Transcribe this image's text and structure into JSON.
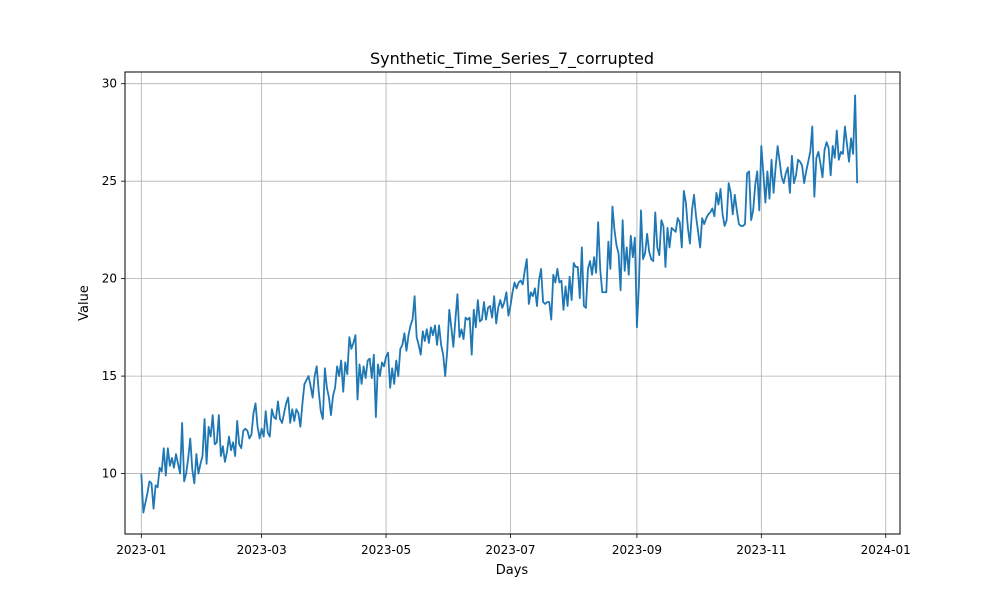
{
  "chart_data": {
    "type": "line",
    "title": "Synthetic_Time_Series_7_corrupted",
    "xlabel": "Days",
    "ylabel": "Value",
    "xlim": [
      "2022-12-24",
      "2024-01-08"
    ],
    "ylim": [
      6.9,
      30.6
    ],
    "grid": true,
    "x_ticks": [
      "2023-01",
      "2023-03",
      "2023-05",
      "2023-07",
      "2023-09",
      "2023-11",
      "2024-01"
    ],
    "y_ticks": [
      10,
      15,
      20,
      25,
      30
    ],
    "series": [
      {
        "color": "#1f77b4",
        "x_start": "2023-01-01",
        "x_step_days": 1,
        "values": [
          10.0,
          8.0,
          8.5,
          9.0,
          9.6,
          9.5,
          8.2,
          9.4,
          9.3,
          10.3,
          10.1,
          11.3,
          9.9,
          11.3,
          10.4,
          10.8,
          10.3,
          11.0,
          10.5,
          10.0,
          12.6,
          9.6,
          10.0,
          10.8,
          11.8,
          10.2,
          9.5,
          11.0,
          10.0,
          10.5,
          10.9,
          12.8,
          10.5,
          12.4,
          11.9,
          13.0,
          11.5,
          11.6,
          13.0,
          10.9,
          11.4,
          10.6,
          11.1,
          11.9,
          11.2,
          11.6,
          10.9,
          12.7,
          11.5,
          11.3,
          12.2,
          12.3,
          12.2,
          11.8,
          12.0,
          13.1,
          13.6,
          12.4,
          11.8,
          12.3,
          11.9,
          13.2,
          12.1,
          11.9,
          13.3,
          12.9,
          12.8,
          13.7,
          12.8,
          12.6,
          13.1,
          13.6,
          13.9,
          12.6,
          13.3,
          12.7,
          13.3,
          13.1,
          12.4,
          13.6,
          14.6,
          14.8,
          15.0,
          14.5,
          13.9,
          15.0,
          15.5,
          14.2,
          13.2,
          12.8,
          15.4,
          14.4,
          13.9,
          13.0,
          14.0,
          14.4,
          15.5,
          15.0,
          15.8,
          14.2,
          15.7,
          15.1,
          17.0,
          16.4,
          16.7,
          17.1,
          13.8,
          15.6,
          14.6,
          15.5,
          14.9,
          15.8,
          15.9,
          14.9,
          16.1,
          12.9,
          15.6,
          15.0,
          15.7,
          15.5,
          16.0,
          16.2,
          14.4,
          15.4,
          14.6,
          15.8,
          15.0,
          16.4,
          16.6,
          17.2,
          16.3,
          17.1,
          17.6,
          17.9,
          19.1,
          17.0,
          16.6,
          16.1,
          17.3,
          16.8,
          17.4,
          16.7,
          17.5,
          17.1,
          17.6,
          16.6,
          17.6,
          16.6,
          16.1,
          15.0,
          16.3,
          18.4,
          17.5,
          16.5,
          17.9,
          19.2,
          17.0,
          17.4,
          16.9,
          18.0,
          17.9,
          18.0,
          16.1,
          18.4,
          17.5,
          18.9,
          17.8,
          17.9,
          18.8,
          17.9,
          18.5,
          18.6,
          18.0,
          19.1,
          17.7,
          18.5,
          18.9,
          18.5,
          18.8,
          19.3,
          18.1,
          18.6,
          19.3,
          19.8,
          19.5,
          19.8,
          19.9,
          19.7,
          20.4,
          21.0,
          18.7,
          19.3,
          19.1,
          19.5,
          18.6,
          19.9,
          20.5,
          18.8,
          18.7,
          18.8,
          18.8,
          17.9,
          20.2,
          19.8,
          20.5,
          19.8,
          19.9,
          18.4,
          19.6,
          18.6,
          20.1,
          18.9,
          20.8,
          20.6,
          20.6,
          19.0,
          21.6,
          18.6,
          18.5,
          20.5,
          20.9,
          20.2,
          21.1,
          20.3,
          22.9,
          20.5,
          19.3,
          19.3,
          19.3,
          21.9,
          20.5,
          23.7,
          22.5,
          21.7,
          21.3,
          19.4,
          23.0,
          20.4,
          21.6,
          20.2,
          22.2,
          21.1,
          22.1,
          17.5,
          19.7,
          23.5,
          21.0,
          21.3,
          22.3,
          21.4,
          21.0,
          20.9,
          23.4,
          21.6,
          21.2,
          23.0,
          22.7,
          20.6,
          22.6,
          21.6,
          22.6,
          22.5,
          22.4,
          23.1,
          22.9,
          21.6,
          24.5,
          23.9,
          22.6,
          21.8,
          23.5,
          24.3,
          23.2,
          22.4,
          21.6,
          23.1,
          22.8,
          23.1,
          23.3,
          23.4,
          23.6,
          23.2,
          24.4,
          23.8,
          24.6,
          23.3,
          22.7,
          23.0,
          24.9,
          24.4,
          23.3,
          24.3,
          23.5,
          22.8,
          22.7,
          22.7,
          22.8,
          25.4,
          25.5,
          23.0,
          23.5,
          24.8,
          25.5,
          23.5,
          26.8,
          25.4,
          23.9,
          25.5,
          24.1,
          26.1,
          24.4,
          25.7,
          26.8,
          26.0,
          25.2,
          24.9,
          25.4,
          25.7,
          24.4,
          26.3,
          24.9,
          25.3,
          26.1,
          26.0,
          25.8,
          24.9,
          25.5,
          26.0,
          26.5,
          27.8,
          24.2,
          26.2,
          26.5,
          25.9,
          25.2,
          26.6,
          27.0,
          26.7,
          25.3,
          26.8,
          26.2,
          27.6,
          26.1,
          26.5,
          26.4,
          27.8,
          26.9,
          26.0,
          27.2,
          26.4,
          29.4,
          24.9
        ]
      }
    ]
  }
}
